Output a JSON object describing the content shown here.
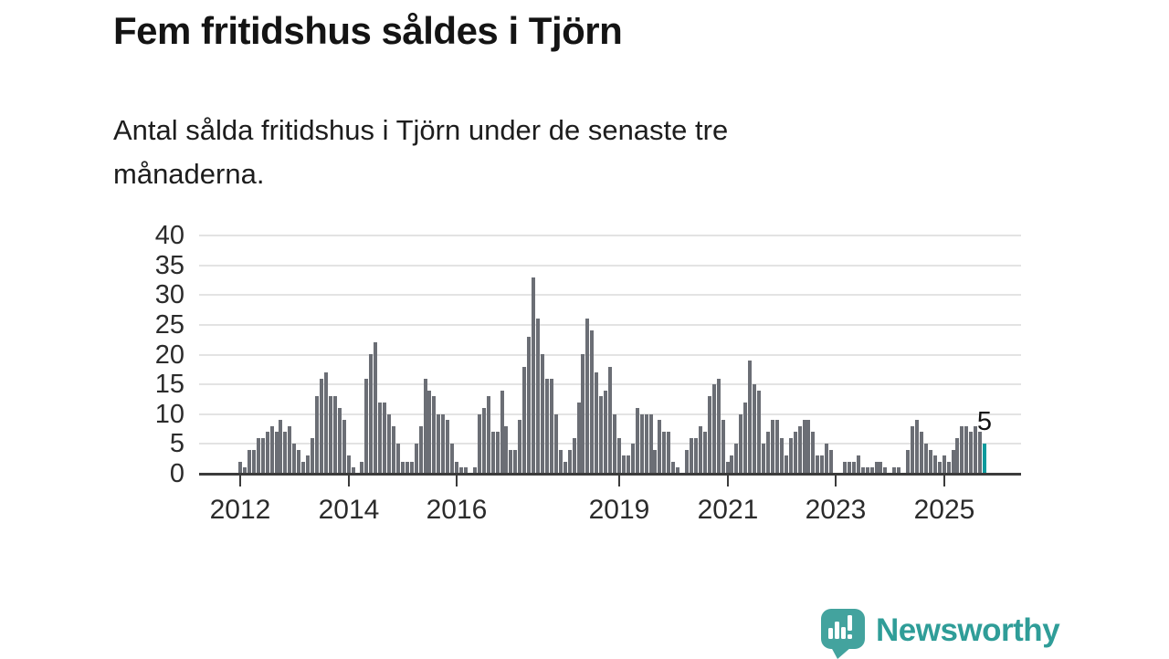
{
  "title": "Fem fritidshus såldes i Tjörn",
  "subtitle": "Antal sålda fritidshus i Tjörn under de senaste tre\nmånaderna.",
  "brand": {
    "name": "Newsworthy",
    "icon": "newsworthy-chart-bubble-icon",
    "icon_color": "#43a39e",
    "text_color": "#2f9d98"
  },
  "colors": {
    "bar": "#6b6e75",
    "highlight": "#0d9b9d",
    "grid": "#e3e3e3",
    "axis": "#3b3b3b",
    "text": "#2b2b2b"
  },
  "chart_data": {
    "type": "bar",
    "title": "Fem fritidshus såldes i Tjörn",
    "subtitle": "Antal sålda fritidshus i Tjörn under de senaste tre månaderna.",
    "x_frequency": "monthly",
    "x_start": "2012-01",
    "x_tick_labels": [
      "2012",
      "2014",
      "2016",
      "2019",
      "2021",
      "2023",
      "2025"
    ],
    "x_tick_indices": [
      0,
      24,
      48,
      84,
      108,
      132,
      156
    ],
    "y_ticks": [
      0,
      5,
      10,
      15,
      20,
      25,
      30,
      35,
      40
    ],
    "ylim": [
      0,
      40
    ],
    "grid": true,
    "legend": false,
    "highlight_last": true,
    "last_value_label": "5",
    "values": [
      2,
      1,
      4,
      4,
      6,
      6,
      7,
      8,
      7,
      9,
      7,
      8,
      5,
      4,
      2,
      3,
      6,
      13,
      16,
      17,
      13,
      13,
      11,
      9,
      3,
      1,
      0,
      2,
      16,
      20,
      22,
      12,
      12,
      10,
      8,
      5,
      2,
      2,
      2,
      5,
      8,
      16,
      14,
      13,
      10,
      10,
      9,
      5,
      2,
      1,
      1,
      0,
      1,
      10,
      11,
      13,
      7,
      7,
      14,
      8,
      4,
      4,
      9,
      18,
      23,
      33,
      26,
      20,
      16,
      16,
      10,
      4,
      2,
      4,
      6,
      12,
      20,
      26,
      24,
      17,
      13,
      14,
      18,
      10,
      6,
      3,
      3,
      5,
      11,
      10,
      10,
      10,
      4,
      9,
      7,
      7,
      2,
      1,
      0,
      4,
      6,
      6,
      8,
      7,
      13,
      15,
      16,
      9,
      2,
      3,
      5,
      10,
      12,
      19,
      15,
      14,
      5,
      7,
      9,
      9,
      6,
      3,
      6,
      7,
      8,
      9,
      9,
      7,
      3,
      3,
      5,
      4,
      0,
      0,
      2,
      2,
      2,
      3,
      1,
      1,
      1,
      2,
      2,
      1,
      0,
      1,
      1,
      0,
      4,
      8,
      9,
      7,
      5,
      4,
      3,
      2,
      3,
      2,
      4,
      6,
      8,
      8,
      7,
      8,
      7,
      5
    ]
  }
}
